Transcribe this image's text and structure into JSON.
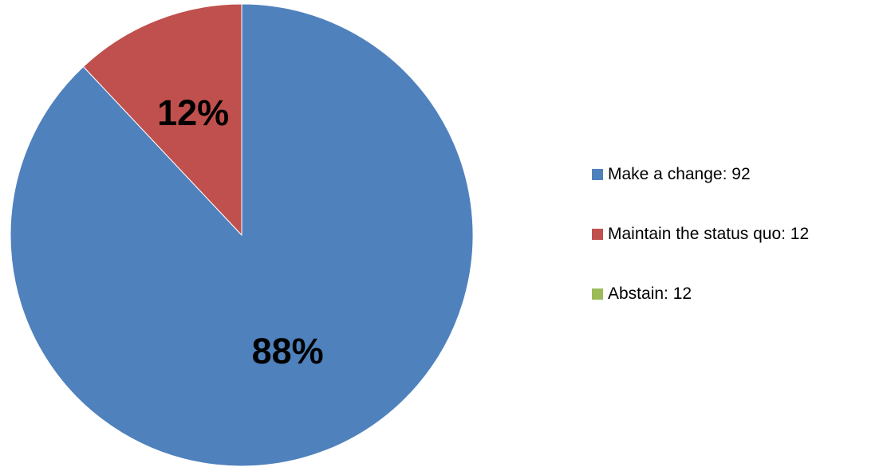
{
  "chart_data": {
    "type": "pie",
    "title": "",
    "slices": [
      {
        "label": "Make a change",
        "value": 92,
        "percent_label": "88%",
        "color": "#4F81BD",
        "legend_text": "Make a change: 92"
      },
      {
        "label": "Maintain the status quo",
        "value": 12,
        "percent_label": "12%",
        "color": "#C0504D",
        "legend_text": "Maintain the status quo: 12"
      },
      {
        "label": "Abstain",
        "value": 12,
        "percent_label": "",
        "color": "#9BBB59",
        "legend_text": "Abstain: 12"
      }
    ],
    "drawn_share": [
      0.88,
      0.12,
      0
    ],
    "start_angle_deg": 0,
    "direction": "clockwise",
    "legend_position": "right"
  }
}
